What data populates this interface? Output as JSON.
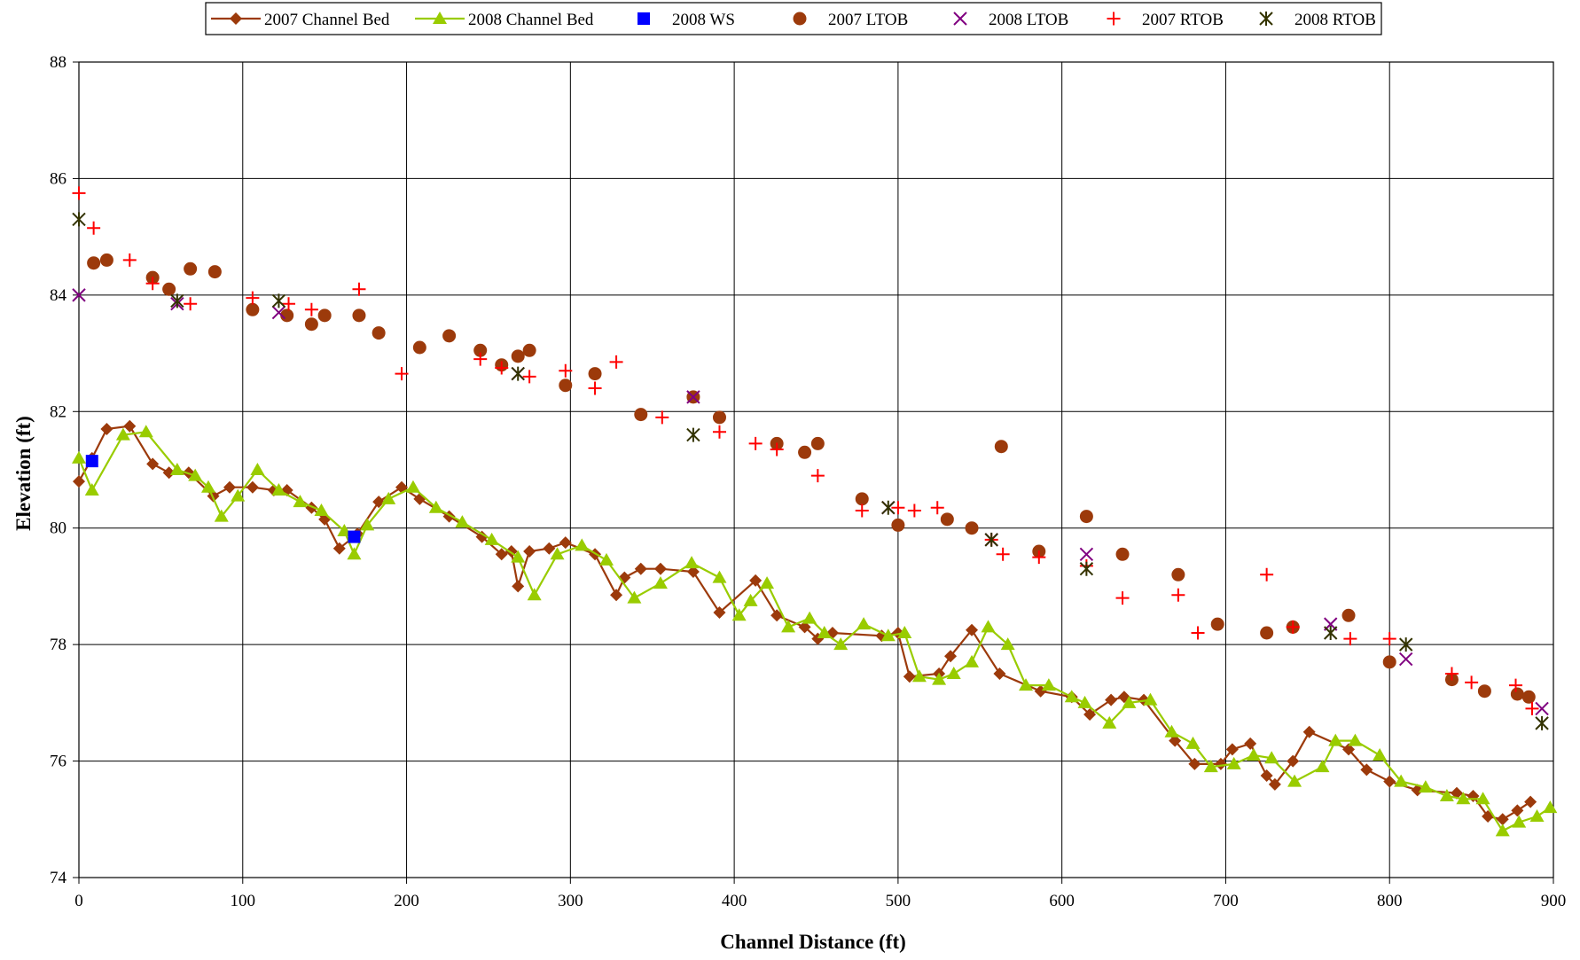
{
  "chart_data": {
    "type": "scatter",
    "title": "",
    "xlabel": "Channel Distance (ft)",
    "ylabel": "Elevation (ft)",
    "xlim": [
      0,
      900
    ],
    "ylim": [
      74,
      88
    ],
    "xticks": [
      0,
      100,
      200,
      300,
      400,
      500,
      600,
      700,
      800,
      900
    ],
    "yticks": [
      74,
      76,
      78,
      80,
      82,
      84,
      86,
      88
    ],
    "grid": true,
    "legend_position": "top-center",
    "series": [
      {
        "name": "2007 Channel Bed",
        "kind": "line-marker",
        "marker": "diamond",
        "color": "#9C3A0B",
        "points": [
          [
            0,
            80.8
          ],
          [
            8,
            81.2
          ],
          [
            17,
            81.7
          ],
          [
            31,
            81.75
          ],
          [
            45,
            81.1
          ],
          [
            55,
            80.95
          ],
          [
            67,
            80.95
          ],
          [
            82,
            80.55
          ],
          [
            92,
            80.7
          ],
          [
            106,
            80.7
          ],
          [
            119,
            80.65
          ],
          [
            127,
            80.65
          ],
          [
            142,
            80.35
          ],
          [
            150,
            80.15
          ],
          [
            159,
            79.65
          ],
          [
            170,
            79.9
          ],
          [
            183,
            80.45
          ],
          [
            197,
            80.7
          ],
          [
            208,
            80.5
          ],
          [
            226,
            80.2
          ],
          [
            246,
            79.85
          ],
          [
            258,
            79.55
          ],
          [
            264,
            79.6
          ],
          [
            268,
            79.0
          ],
          [
            275,
            79.6
          ],
          [
            287,
            79.65
          ],
          [
            297,
            79.75
          ],
          [
            315,
            79.55
          ],
          [
            328,
            78.85
          ],
          [
            333,
            79.15
          ],
          [
            343,
            79.3
          ],
          [
            355,
            79.3
          ],
          [
            375,
            79.25
          ],
          [
            391,
            78.55
          ],
          [
            413,
            79.1
          ],
          [
            426,
            78.5
          ],
          [
            443,
            78.3
          ],
          [
            451,
            78.1
          ],
          [
            460,
            78.2
          ],
          [
            490,
            78.15
          ],
          [
            500,
            78.2
          ],
          [
            507,
            77.45
          ],
          [
            525,
            77.5
          ],
          [
            532,
            77.8
          ],
          [
            545,
            78.25
          ],
          [
            562,
            77.5
          ],
          [
            587,
            77.2
          ],
          [
            606,
            77.1
          ],
          [
            617,
            76.8
          ],
          [
            630,
            77.05
          ],
          [
            638,
            77.1
          ],
          [
            650,
            77.05
          ],
          [
            669,
            76.35
          ],
          [
            681,
            75.95
          ],
          [
            697,
            75.95
          ],
          [
            704,
            76.2
          ],
          [
            715,
            76.3
          ],
          [
            725,
            75.75
          ],
          [
            730,
            75.6
          ],
          [
            741,
            76.0
          ],
          [
            751,
            76.5
          ],
          [
            775,
            76.2
          ],
          [
            786,
            75.85
          ],
          [
            800,
            75.65
          ],
          [
            817,
            75.5
          ],
          [
            841,
            75.45
          ],
          [
            851,
            75.4
          ],
          [
            860,
            75.05
          ],
          [
            869,
            75.0
          ],
          [
            878,
            75.15
          ],
          [
            886,
            75.3
          ]
        ]
      },
      {
        "name": "2008 Channel Bed",
        "kind": "line-marker",
        "marker": "triangle",
        "color": "#99CC00",
        "points": [
          [
            0,
            81.2
          ],
          [
            8,
            80.65
          ],
          [
            27,
            81.6
          ],
          [
            41,
            81.65
          ],
          [
            60,
            81.0
          ],
          [
            71,
            80.9
          ],
          [
            79,
            80.7
          ],
          [
            87,
            80.2
          ],
          [
            97,
            80.55
          ],
          [
            109,
            81.0
          ],
          [
            122,
            80.65
          ],
          [
            135,
            80.45
          ],
          [
            148,
            80.3
          ],
          [
            162,
            79.95
          ],
          [
            168,
            79.55
          ],
          [
            176,
            80.05
          ],
          [
            189,
            80.5
          ],
          [
            204,
            80.7
          ],
          [
            218,
            80.35
          ],
          [
            234,
            80.1
          ],
          [
            252,
            79.8
          ],
          [
            268,
            79.5
          ],
          [
            278,
            78.85
          ],
          [
            292,
            79.55
          ],
          [
            307,
            79.7
          ],
          [
            322,
            79.45
          ],
          [
            339,
            78.8
          ],
          [
            355,
            79.05
          ],
          [
            374,
            79.4
          ],
          [
            391,
            79.15
          ],
          [
            403,
            78.5
          ],
          [
            410,
            78.75
          ],
          [
            420,
            79.05
          ],
          [
            433,
            78.3
          ],
          [
            446,
            78.45
          ],
          [
            455,
            78.2
          ],
          [
            465,
            78.0
          ],
          [
            479,
            78.35
          ],
          [
            494,
            78.15
          ],
          [
            504,
            78.2
          ],
          [
            513,
            77.45
          ],
          [
            525,
            77.4
          ],
          [
            534,
            77.5
          ],
          [
            545,
            77.7
          ],
          [
            555,
            78.3
          ],
          [
            567,
            78.0
          ],
          [
            578,
            77.3
          ],
          [
            592,
            77.3
          ],
          [
            606,
            77.1
          ],
          [
            614,
            77.0
          ],
          [
            629,
            76.65
          ],
          [
            641,
            77.0
          ],
          [
            654,
            77.05
          ],
          [
            667,
            76.5
          ],
          [
            680,
            76.3
          ],
          [
            691,
            75.9
          ],
          [
            705,
            75.95
          ],
          [
            717,
            76.1
          ],
          [
            728,
            76.05
          ],
          [
            742,
            75.65
          ],
          [
            759,
            75.9
          ],
          [
            767,
            76.35
          ],
          [
            779,
            76.35
          ],
          [
            794,
            76.1
          ],
          [
            807,
            75.65
          ],
          [
            822,
            75.55
          ],
          [
            835,
            75.4
          ],
          [
            845,
            75.35
          ],
          [
            857,
            75.35
          ],
          [
            869,
            74.8
          ],
          [
            879,
            74.95
          ],
          [
            890,
            75.05
          ],
          [
            898,
            75.2
          ]
        ]
      },
      {
        "name": "2008 WS",
        "kind": "marker",
        "marker": "square",
        "color": "#0000FF",
        "points": [
          [
            8,
            81.15
          ],
          [
            168,
            79.85
          ]
        ]
      },
      {
        "name": "2007 LTOB",
        "kind": "marker",
        "marker": "circle",
        "color": "#9C3A0B",
        "points": [
          [
            9,
            84.55
          ],
          [
            17,
            84.6
          ],
          [
            45,
            84.3
          ],
          [
            55,
            84.1
          ],
          [
            68,
            84.45
          ],
          [
            83,
            84.4
          ],
          [
            106,
            83.75
          ],
          [
            127,
            83.65
          ],
          [
            142,
            83.5
          ],
          [
            150,
            83.65
          ],
          [
            171,
            83.65
          ],
          [
            183,
            83.35
          ],
          [
            208,
            83.1
          ],
          [
            226,
            83.3
          ],
          [
            245,
            83.05
          ],
          [
            258,
            82.8
          ],
          [
            268,
            82.95
          ],
          [
            275,
            83.05
          ],
          [
            297,
            82.45
          ],
          [
            315,
            82.65
          ],
          [
            343,
            81.95
          ],
          [
            375,
            82.25
          ],
          [
            391,
            81.9
          ],
          [
            426,
            81.45
          ],
          [
            443,
            81.3
          ],
          [
            451,
            81.45
          ],
          [
            478,
            80.5
          ],
          [
            500,
            80.05
          ],
          [
            530,
            80.15
          ],
          [
            545,
            80.0
          ],
          [
            563,
            81.4
          ],
          [
            586,
            79.6
          ],
          [
            615,
            80.2
          ],
          [
            637,
            79.55
          ],
          [
            671,
            79.2
          ],
          [
            695,
            78.35
          ],
          [
            725,
            78.2
          ],
          [
            741,
            78.3
          ],
          [
            775,
            78.5
          ],
          [
            800,
            77.7
          ],
          [
            838,
            77.4
          ],
          [
            858,
            77.2
          ],
          [
            878,
            77.15
          ],
          [
            885,
            77.1
          ]
        ]
      },
      {
        "name": "2008 LTOB",
        "kind": "marker",
        "marker": "x",
        "color": "#800080",
        "points": [
          [
            0,
            84.0
          ],
          [
            60,
            83.85
          ],
          [
            122,
            83.7
          ],
          [
            268,
            82.65
          ],
          [
            375,
            82.25
          ],
          [
            494,
            80.35
          ],
          [
            557,
            79.8
          ],
          [
            615,
            79.55
          ],
          [
            764,
            78.35
          ],
          [
            810,
            77.75
          ],
          [
            893,
            76.9
          ]
        ]
      },
      {
        "name": "2007 RTOB",
        "kind": "marker",
        "marker": "plus",
        "color": "#FF0000",
        "points": [
          [
            0,
            85.75
          ],
          [
            9,
            85.15
          ],
          [
            31,
            84.6
          ],
          [
            45,
            84.2
          ],
          [
            68,
            83.85
          ],
          [
            106,
            83.95
          ],
          [
            128,
            83.85
          ],
          [
            142,
            83.75
          ],
          [
            171,
            84.1
          ],
          [
            197,
            82.65
          ],
          [
            245,
            82.9
          ],
          [
            258,
            82.75
          ],
          [
            275,
            82.6
          ],
          [
            297,
            82.7
          ],
          [
            315,
            82.4
          ],
          [
            328,
            82.85
          ],
          [
            356,
            81.9
          ],
          [
            391,
            81.65
          ],
          [
            413,
            81.45
          ],
          [
            426,
            81.35
          ],
          [
            451,
            80.9
          ],
          [
            478,
            80.3
          ],
          [
            500,
            80.35
          ],
          [
            510,
            80.3
          ],
          [
            524,
            80.35
          ],
          [
            557,
            79.8
          ],
          [
            564,
            79.55
          ],
          [
            586,
            79.5
          ],
          [
            615,
            79.35
          ],
          [
            637,
            78.8
          ],
          [
            671,
            78.85
          ],
          [
            683,
            78.2
          ],
          [
            725,
            79.2
          ],
          [
            741,
            78.3
          ],
          [
            776,
            78.1
          ],
          [
            800,
            78.1
          ],
          [
            838,
            77.5
          ],
          [
            850,
            77.35
          ],
          [
            877,
            77.3
          ],
          [
            887,
            76.9
          ]
        ]
      },
      {
        "name": "2008 RTOB",
        "kind": "marker",
        "marker": "star",
        "color": "#333300",
        "points": [
          [
            0,
            85.3
          ],
          [
            60,
            83.9
          ],
          [
            122,
            83.9
          ],
          [
            268,
            82.65
          ],
          [
            375,
            81.6
          ],
          [
            494,
            80.35
          ],
          [
            557,
            79.8
          ],
          [
            615,
            79.3
          ],
          [
            764,
            78.2
          ],
          [
            810,
            78.0
          ],
          [
            893,
            76.65
          ]
        ]
      }
    ]
  }
}
